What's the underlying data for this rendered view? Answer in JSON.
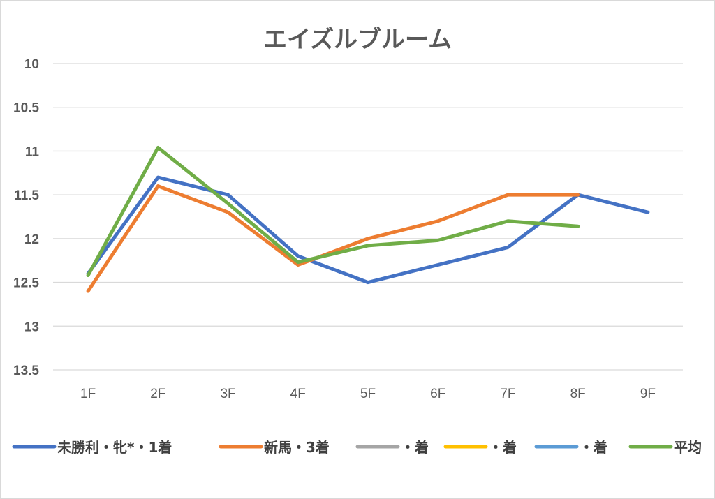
{
  "chart_data": {
    "type": "line",
    "title": "エイズルブルーム",
    "xlabel": "",
    "ylabel": "",
    "categories": [
      "1F",
      "2F",
      "3F",
      "4F",
      "5F",
      "6F",
      "7F",
      "8F",
      "9F"
    ],
    "y_reversed": true,
    "ylim": [
      10,
      13.5
    ],
    "yticks": [
      "10",
      "10.5",
      "11",
      "11.5",
      "12",
      "12.5",
      "13",
      "13.5"
    ],
    "ytick_values": [
      10,
      10.5,
      11,
      11.5,
      12,
      12.5,
      13,
      13.5
    ],
    "grid": true,
    "legend_position": "bottom",
    "series": [
      {
        "name": "未勝利・牝*・1着",
        "color": "#4472c4",
        "values": [
          12.4,
          11.3,
          11.5,
          12.2,
          12.5,
          12.3,
          12.1,
          11.5,
          11.7
        ]
      },
      {
        "name": "新馬・3着",
        "color": "#ed7d31",
        "values": [
          12.6,
          11.4,
          11.7,
          12.3,
          12.0,
          11.8,
          11.5,
          11.5,
          null
        ]
      },
      {
        "name": "・着",
        "color": "#a5a5a5",
        "values": [
          null,
          null,
          null,
          null,
          null,
          null,
          null,
          null,
          null
        ]
      },
      {
        "name": "・着",
        "color": "#ffc000",
        "values": [
          null,
          null,
          null,
          null,
          null,
          null,
          null,
          null,
          null
        ]
      },
      {
        "name": "・着",
        "color": "#5b9bd5",
        "values": [
          null,
          null,
          null,
          null,
          null,
          null,
          null,
          null,
          null
        ]
      },
      {
        "name": "平均",
        "color": "#70ad47",
        "values": [
          12.42,
          10.96,
          11.6,
          12.27,
          12.08,
          12.02,
          11.8,
          11.86,
          null
        ]
      }
    ]
  }
}
